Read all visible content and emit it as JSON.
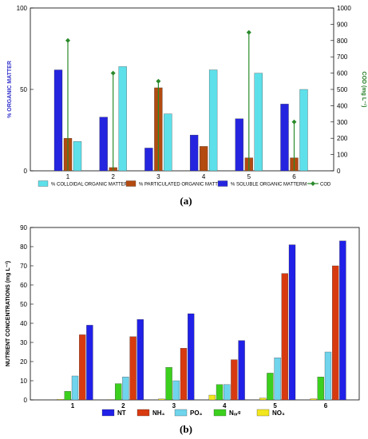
{
  "chart_data": [
    {
      "type": "bar",
      "panel_label": "(a)",
      "categories": [
        "1",
        "2",
        "3",
        "4",
        "5",
        "6"
      ],
      "ylabel": "% ORGANIC MATTER",
      "ylim": [
        0,
        100
      ],
      "yticks": [
        "0",
        "50",
        "100"
      ],
      "y2label": "COD (mg L⁻¹)",
      "y2lim": [
        0,
        1000
      ],
      "y2ticks": [
        "0",
        "100",
        "200",
        "300",
        "400",
        "500",
        "600",
        "700",
        "800",
        "900",
        "1000"
      ],
      "series": [
        {
          "name": "% SOLUBLE ORGANIC MATTERM",
          "color": "#2525e0",
          "values": [
            62,
            33,
            14,
            22,
            32,
            41
          ]
        },
        {
          "name": "% PARTICULATED ORGANIC MATTER",
          "color": "#b34a10",
          "values": [
            20,
            2,
            51,
            15,
            8,
            8
          ]
        },
        {
          "name": "% COLLOIDAL ORGANIC MATTER",
          "color": "#5ee0ea",
          "values": [
            18,
            64,
            35,
            62,
            60,
            50
          ]
        },
        {
          "name": "COD",
          "type": "line-marker",
          "axis": "y2",
          "color": "#2a8a2a",
          "values": [
            800,
            600,
            550,
            0,
            850,
            300
          ]
        }
      ],
      "legend": [
        "% COLLOIDAL ORGANIC MATTER",
        "% PARTICULATED ORGANIC MATTER",
        "% SOLUBLE ORGANIC MATTERM",
        "COD"
      ]
    },
    {
      "type": "bar",
      "panel_label": "(b)",
      "categories": [
        "1",
        "2",
        "3",
        "4",
        "5",
        "6"
      ],
      "ylabel": "NUTRIENT CONCENTRATIONS (mg L⁻¹)",
      "ylim": [
        0,
        90
      ],
      "yticks": [
        "0",
        "10",
        "20",
        "30",
        "40",
        "50",
        "60",
        "70",
        "80",
        "90"
      ],
      "series": [
        {
          "name": "NO₃",
          "color": "#f2e61e",
          "values": [
            0.3,
            0.2,
            0.5,
            2.5,
            1.0,
            0.6
          ]
        },
        {
          "name": "Nₒᵣᵍ",
          "color": "#3ccf1e",
          "values": [
            4.5,
            8.5,
            17,
            8,
            14,
            12
          ]
        },
        {
          "name": "PO₄",
          "color": "#6fd4ec",
          "values": [
            12.5,
            12,
            10,
            8,
            22,
            25
          ]
        },
        {
          "name": "NH₄",
          "color": "#d83a10",
          "values": [
            34,
            33,
            27,
            21,
            66,
            70
          ]
        },
        {
          "name": "NT",
          "color": "#2020e8",
          "values": [
            39,
            42,
            45,
            31,
            81,
            83
          ]
        }
      ],
      "legend": [
        "NT",
        "NH₄",
        "PO₄",
        "Nₒᵣᵍ",
        "NO₃"
      ]
    }
  ]
}
